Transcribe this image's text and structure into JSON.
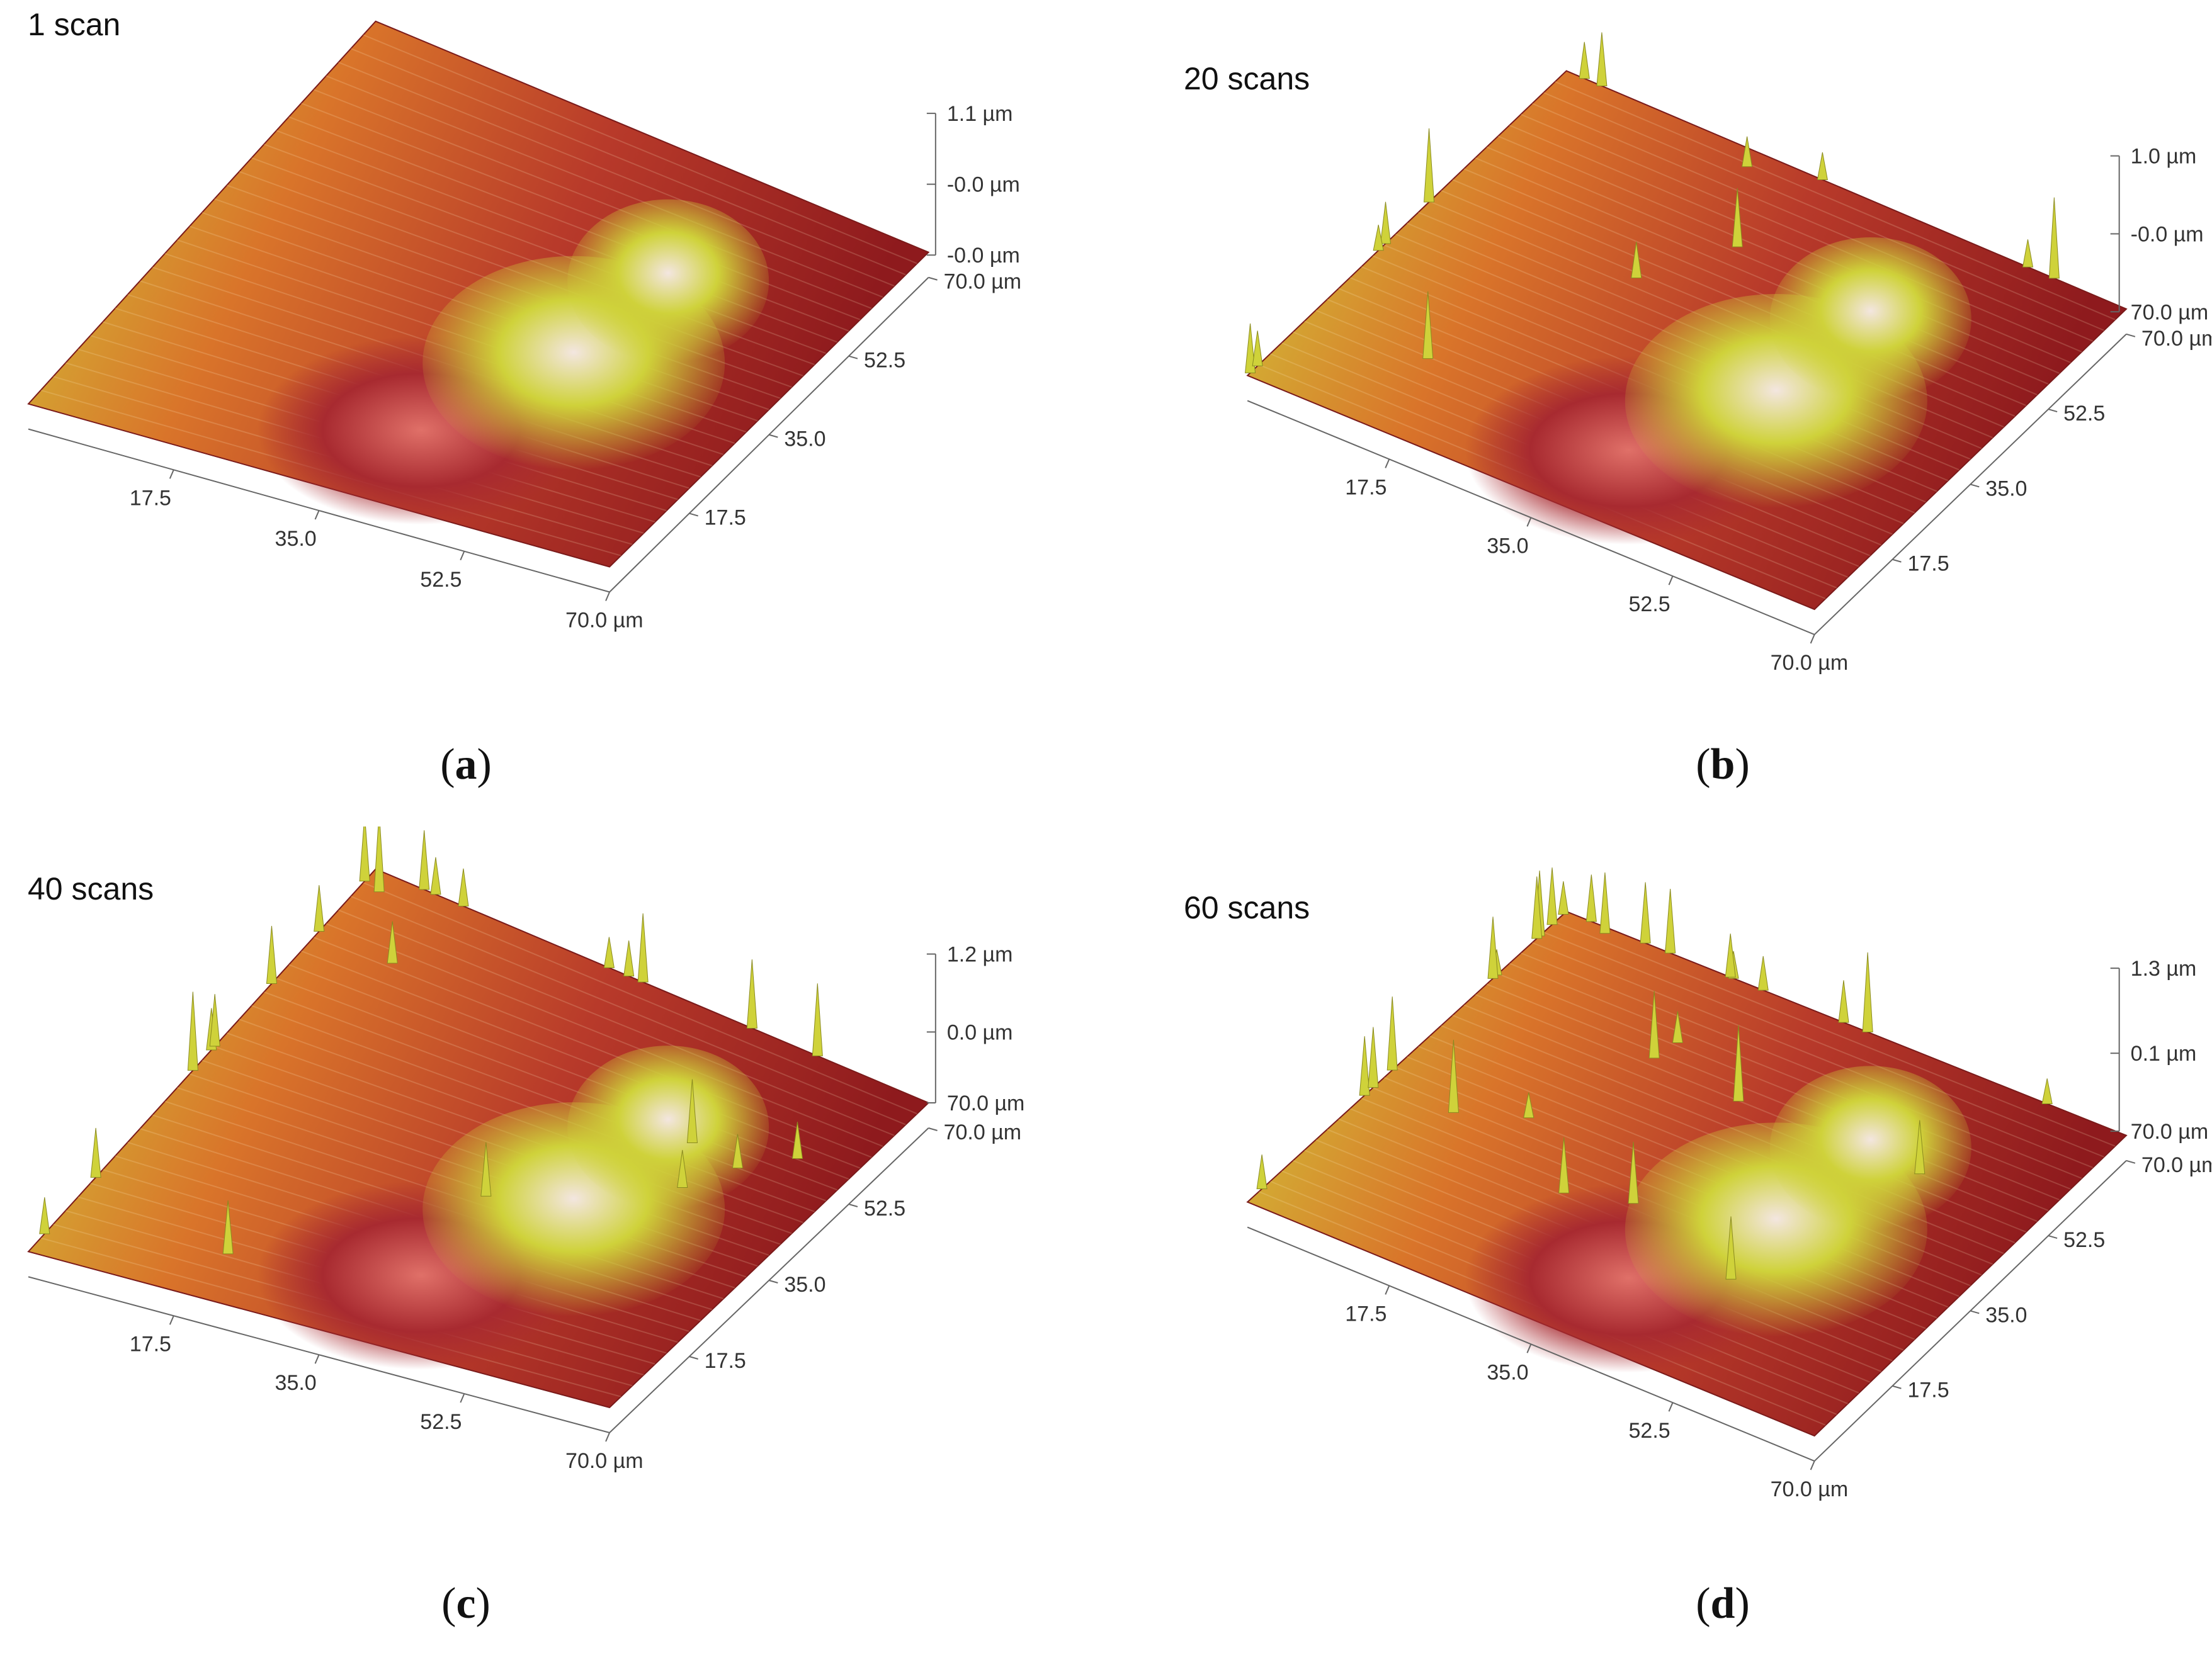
{
  "panels": [
    {
      "id": "a",
      "caption_letter": "a",
      "title": "1 scan",
      "z_max_label": "1.1 µm",
      "z_mid_label": "-0.0 µm",
      "z_min_label": "-0.0 µm",
      "x_ticks": [
        "17.5",
        "35.0",
        "52.5",
        "70.0 µm"
      ],
      "y_ticks": [
        "17.5",
        "35.0",
        "52.5",
        "70.0 µm"
      ],
      "spike_count": 0
    },
    {
      "id": "b",
      "caption_letter": "b",
      "title": "20 scans",
      "z_max_label": "1.0 µm",
      "z_mid_label": "-0.0 µm",
      "z_min_label": "70.0 µm",
      "x_ticks": [
        "17.5",
        "35.0",
        "52.5",
        "70.0 µm"
      ],
      "y_ticks": [
        "17.5",
        "35.0",
        "52.5",
        "70.0 µm"
      ],
      "spike_count": 14
    },
    {
      "id": "c",
      "caption_letter": "c",
      "title": "40 scans",
      "z_max_label": "1.2 µm",
      "z_mid_label": "0.0 µm",
      "z_min_label": "70.0 µm",
      "x_ticks": [
        "17.5",
        "35.0",
        "52.5",
        "70.0 µm"
      ],
      "y_ticks": [
        "17.5",
        "35.0",
        "52.5",
        "70.0 µm"
      ],
      "spike_count": 24
    },
    {
      "id": "d",
      "caption_letter": "d",
      "title": "60 scans",
      "z_max_label": "1.3 µm",
      "z_mid_label": "0.1 µm",
      "z_min_label": "70.0 µm",
      "x_ticks": [
        "17.5",
        "35.0",
        "52.5",
        "70.0 µm"
      ],
      "y_ticks": [
        "17.5",
        "35.0",
        "52.5",
        "70.0 µm"
      ],
      "spike_count": 30
    }
  ],
  "colors": {
    "surface_low": "#8e1a1d",
    "surface_mid": "#d9742a",
    "surface_high": "#cfd23a",
    "peak": "#f3e6e0",
    "axis": "#666666"
  }
}
